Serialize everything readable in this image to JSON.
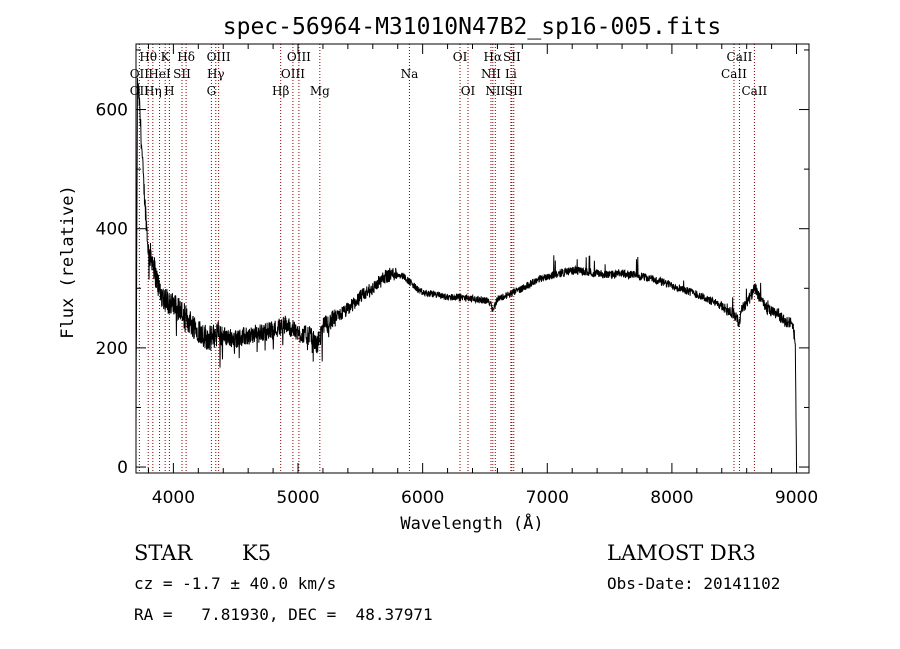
{
  "chart_data": {
    "type": "line",
    "title": "spec-56964-M31010N47B2_sp16-005.fits",
    "xlabel": "Wavelength (Å)",
    "ylabel": "Flux (relative)",
    "xlim": [
      3700,
      9100
    ],
    "ylim": [
      -10,
      710
    ],
    "xticks": [
      4000,
      5000,
      6000,
      7000,
      8000,
      9000
    ],
    "yticks": [
      0,
      200,
      400,
      600
    ],
    "xtick_labels": [
      "4000",
      "5000",
      "6000",
      "7000",
      "8000",
      "9000"
    ],
    "ytick_labels": [
      "0",
      "200",
      "400",
      "600"
    ],
    "grid": false,
    "line_color": "#000000",
    "marker_color": "#8b0000",
    "spectrum_anchors": {
      "x": [
        3700,
        3712,
        3725,
        3740,
        3760,
        3780,
        3800,
        3830,
        3860,
        3900,
        3950,
        4000,
        4050,
        4100,
        4150,
        4200,
        4250,
        4300,
        4350,
        4400,
        4500,
        4600,
        4700,
        4800,
        4900,
        5000,
        5100,
        5150,
        5180,
        5200,
        5300,
        5400,
        5500,
        5600,
        5700,
        5780,
        5850,
        5900,
        5950,
        6000,
        6100,
        6200,
        6300,
        6400,
        6500,
        6550,
        6563,
        6580,
        6600,
        6700,
        6800,
        6900,
        7000,
        7100,
        7200,
        7300,
        7400,
        7500,
        7600,
        7700,
        7800,
        7900,
        8000,
        8100,
        8200,
        8300,
        8400,
        8500,
        8540,
        8560,
        8600,
        8640,
        8670,
        8700,
        8750,
        8800,
        8850,
        8900,
        8950,
        8975,
        8990,
        9000
      ],
      "y": [
        60,
        640,
        620,
        560,
        480,
        420,
        360,
        350,
        320,
        290,
        280,
        270,
        265,
        250,
        240,
        230,
        220,
        215,
        225,
        220,
        215,
        220,
        225,
        230,
        240,
        225,
        220,
        205,
        220,
        235,
        250,
        265,
        285,
        300,
        320,
        325,
        320,
        310,
        300,
        292,
        290,
        285,
        285,
        282,
        280,
        276,
        262,
        272,
        282,
        290,
        300,
        312,
        320,
        325,
        330,
        328,
        325,
        322,
        325,
        322,
        318,
        312,
        305,
        298,
        290,
        280,
        270,
        258,
        240,
        268,
        275,
        290,
        300,
        285,
        268,
        260,
        258,
        245,
        242,
        230,
        210,
        0
      ]
    },
    "lines": [
      {
        "label": "OII",
        "wavelength": 3727,
        "row": 2
      },
      {
        "label": "OII",
        "wavelength": 3727,
        "row": 3
      },
      {
        "label": "Hθ",
        "wavelength": 3798,
        "row": 1
      },
      {
        "label": "Hη",
        "wavelength": 3835,
        "row": 3
      },
      {
        "label": "HeI",
        "wavelength": 3889,
        "row": 2
      },
      {
        "label": "K",
        "wavelength": 3934,
        "row": 1
      },
      {
        "label": "H",
        "wavelength": 3968,
        "row": 3
      },
      {
        "label": "SII",
        "wavelength": 4069,
        "row": 2
      },
      {
        "label": "Hδ",
        "wavelength": 4102,
        "row": 1
      },
      {
        "label": "G",
        "wavelength": 4305,
        "row": 3
      },
      {
        "label": "Hγ",
        "wavelength": 4340,
        "row": 2
      },
      {
        "label": "OIII",
        "wavelength": 4363,
        "row": 1
      },
      {
        "label": "Hβ",
        "wavelength": 4861,
        "row": 3
      },
      {
        "label": "OIII",
        "wavelength": 4959,
        "row": 2
      },
      {
        "label": "OIII",
        "wavelength": 5007,
        "row": 1
      },
      {
        "label": "Mg",
        "wavelength": 5175,
        "row": 3
      },
      {
        "label": "Na",
        "wavelength": 5894,
        "row": 2
      },
      {
        "label": "OI",
        "wavelength": 6300,
        "row": 1
      },
      {
        "label": "OI",
        "wavelength": 6364,
        "row": 3
      },
      {
        "label": "NII",
        "wavelength": 6548,
        "row": 2
      },
      {
        "label": "Hα",
        "wavelength": 6563,
        "row": 1
      },
      {
        "label": "NII",
        "wavelength": 6583,
        "row": 3
      },
      {
        "label": "Li",
        "wavelength": 6708,
        "row": 2
      },
      {
        "label": "SII",
        "wavelength": 6716,
        "row": 1
      },
      {
        "label": "SII",
        "wavelength": 6731,
        "row": 3
      },
      {
        "label": "CaII",
        "wavelength": 8498,
        "row": 2
      },
      {
        "label": "CaII",
        "wavelength": 8542,
        "row": 1
      },
      {
        "label": "CaII",
        "wavelength": 8662,
        "row": 3
      }
    ]
  },
  "footer": {
    "object_class": "STAR",
    "subclass": "K5",
    "survey": "LAMOST DR3",
    "redshift_text": "cz = -1.7 ± 40.0 km/s",
    "obs_date_text": "Obs-Date: 20141102",
    "coords_text": "RA =   7.81930, DEC =  48.37971"
  }
}
